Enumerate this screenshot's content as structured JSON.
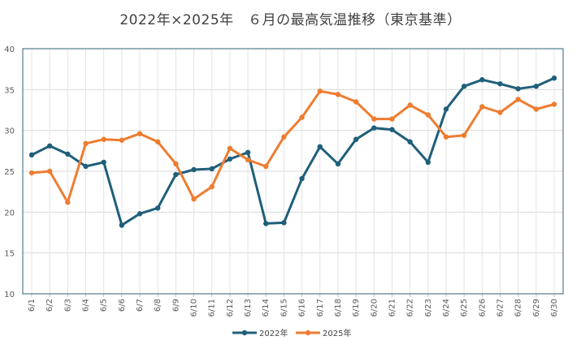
{
  "chart_data": {
    "type": "line",
    "title": "2022年×2025年　６月の最高気温推移（東京基準）",
    "xlabel": "",
    "ylabel": "",
    "ylim": [
      10,
      40
    ],
    "yticks": [
      10,
      15,
      20,
      25,
      30,
      35,
      40
    ],
    "grid": true,
    "legend_position": "bottom",
    "categories": [
      "6/1",
      "6/2",
      "6/3",
      "6/4",
      "6/5",
      "6/6",
      "6/7",
      "6/8",
      "6/9",
      "6/10",
      "6/11",
      "6/12",
      "6/13",
      "6/14",
      "6/15",
      "6/16",
      "6/17",
      "6/18",
      "6/19",
      "6/20",
      "6/21",
      "6/22",
      "6/23",
      "6/24",
      "6/25",
      "6/26",
      "6/27",
      "6/28",
      "6/29",
      "6/30"
    ],
    "series": [
      {
        "name": "2022年",
        "color": "#1f5f7a",
        "values": [
          27.0,
          28.1,
          27.1,
          25.6,
          26.1,
          18.4,
          19.8,
          20.5,
          24.6,
          25.2,
          25.3,
          26.5,
          27.3,
          18.6,
          18.7,
          24.1,
          28.0,
          25.9,
          28.9,
          30.3,
          30.1,
          28.6,
          26.1,
          32.6,
          35.4,
          36.2,
          35.7,
          35.1,
          35.4,
          36.4
        ]
      },
      {
        "name": "2025年",
        "color": "#ed7d31",
        "values": [
          24.8,
          25.0,
          21.2,
          28.4,
          28.9,
          28.8,
          29.6,
          28.6,
          25.9,
          21.6,
          23.1,
          27.8,
          26.4,
          25.6,
          29.2,
          31.6,
          34.8,
          34.4,
          33.5,
          31.4,
          31.4,
          33.1,
          31.9,
          29.2,
          29.4,
          32.9,
          32.2,
          33.8,
          32.6,
          33.2
        ]
      }
    ]
  }
}
